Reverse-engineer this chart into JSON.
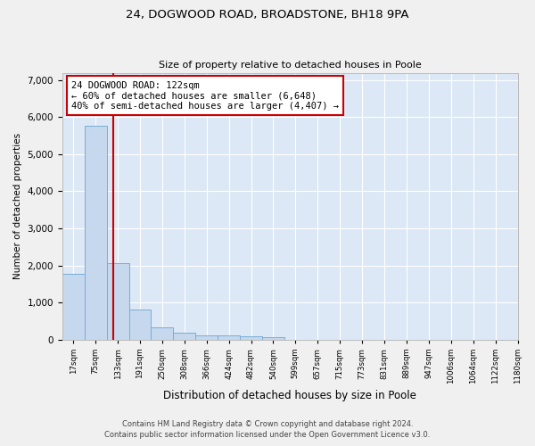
{
  "title_line1": "24, DOGWOOD ROAD, BROADSTONE, BH18 9PA",
  "title_line2": "Size of property relative to detached houses in Poole",
  "xlabel": "Distribution of detached houses by size in Poole",
  "ylabel": "Number of detached properties",
  "bar_color": "#c5d8ee",
  "bar_edge_color": "#7aadd4",
  "vline_color": "#cc0000",
  "vline_x_bin": 3,
  "annotation_text": "24 DOGWOOD ROAD: 122sqm\n← 60% of detached houses are smaller (6,648)\n40% of semi-detached houses are larger (4,407) →",
  "annotation_box_color": "#cc0000",
  "footnote1": "Contains HM Land Registry data © Crown copyright and database right 2024.",
  "footnote2": "Contains public sector information licensed under the Open Government Licence v3.0.",
  "bin_labels": [
    "17sqm",
    "75sqm",
    "133sqm",
    "191sqm",
    "250sqm",
    "308sqm",
    "366sqm",
    "424sqm",
    "482sqm",
    "540sqm",
    "599sqm",
    "657sqm",
    "715sqm",
    "773sqm",
    "831sqm",
    "889sqm",
    "947sqm",
    "1006sqm",
    "1064sqm",
    "1122sqm",
    "1180sqm"
  ],
  "bins": [
    17,
    75,
    133,
    191,
    250,
    308,
    366,
    424,
    482,
    540,
    599,
    657,
    715,
    773,
    831,
    889,
    947,
    1006,
    1064,
    1122,
    1180
  ],
  "counts": [
    1780,
    5780,
    2060,
    820,
    335,
    185,
    115,
    100,
    95,
    70,
    0,
    0,
    0,
    0,
    0,
    0,
    0,
    0,
    0,
    0
  ],
  "ylim": [
    0,
    7200
  ],
  "background_color": "#dce8f5",
  "fig_background": "#f0f0f0",
  "grid_color": "#ffffff"
}
